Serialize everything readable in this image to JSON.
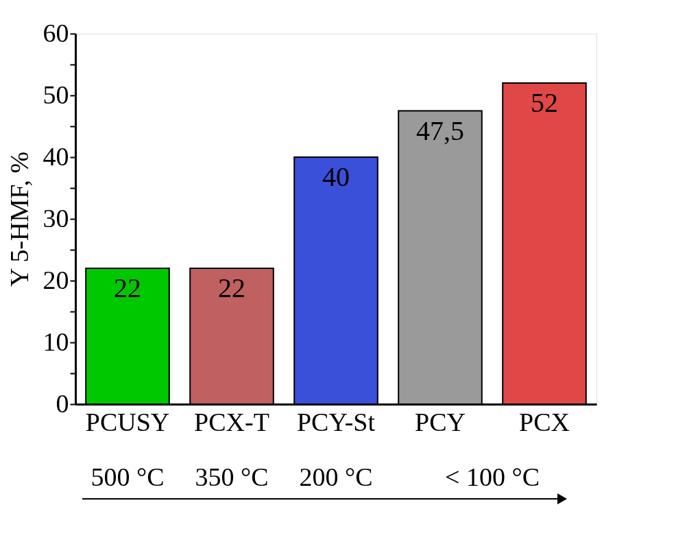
{
  "chart_data": {
    "type": "bar",
    "ylabel": "Y 5-HMF, %",
    "categories": [
      "PCUSY",
      "PCX-T",
      "PCY-St",
      "PCY",
      "PCX"
    ],
    "values": [
      22,
      22,
      40,
      47.5,
      52
    ],
    "colors": [
      "#00c800",
      "#c06060",
      "#3a50d8",
      "#9a9a9a",
      "#e04848"
    ],
    "value_labels": [
      "22",
      "22",
      "40",
      "47,5",
      "52"
    ],
    "ylim": [
      0,
      60
    ],
    "yticks": [
      0,
      {
        "value": 5,
        "label": null
      },
      10,
      {
        "value": 15,
        "label": null
      },
      20,
      {
        "value": 25,
        "label": null
      },
      30,
      {
        "value": 35,
        "label": null
      },
      40,
      {
        "value": 45,
        "label": null
      },
      50,
      {
        "value": 55,
        "label": null
      },
      60
    ],
    "grid": false,
    "annotations": [
      "500 °C",
      "350 °C",
      "200 °C",
      "<  100 °C"
    ]
  }
}
